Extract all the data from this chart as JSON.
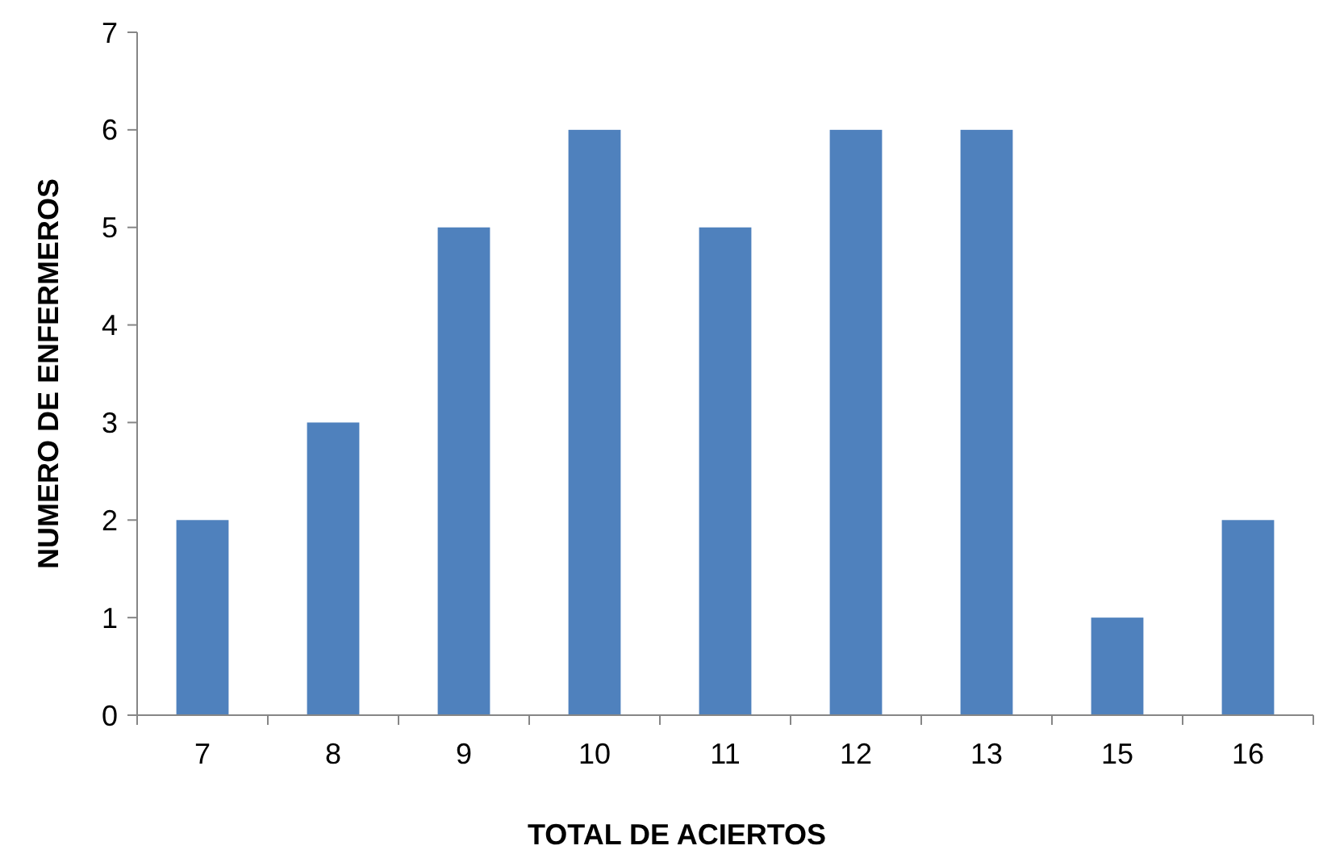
{
  "chart_data": {
    "type": "bar",
    "xlabel": "TOTAL DE ACIERTOS",
    "ylabel": "NUMERO DE ENFERMEROS",
    "categories": [
      "7",
      "8",
      "9",
      "10",
      "11",
      "12",
      "13",
      "15",
      "16"
    ],
    "values": [
      2,
      3,
      5,
      6,
      5,
      6,
      6,
      1,
      2
    ],
    "color": "#4f81bd",
    "ylim": [
      0,
      7
    ],
    "yticks": [
      0,
      1,
      2,
      3,
      4,
      5,
      6,
      7
    ],
    "grid": false
  }
}
